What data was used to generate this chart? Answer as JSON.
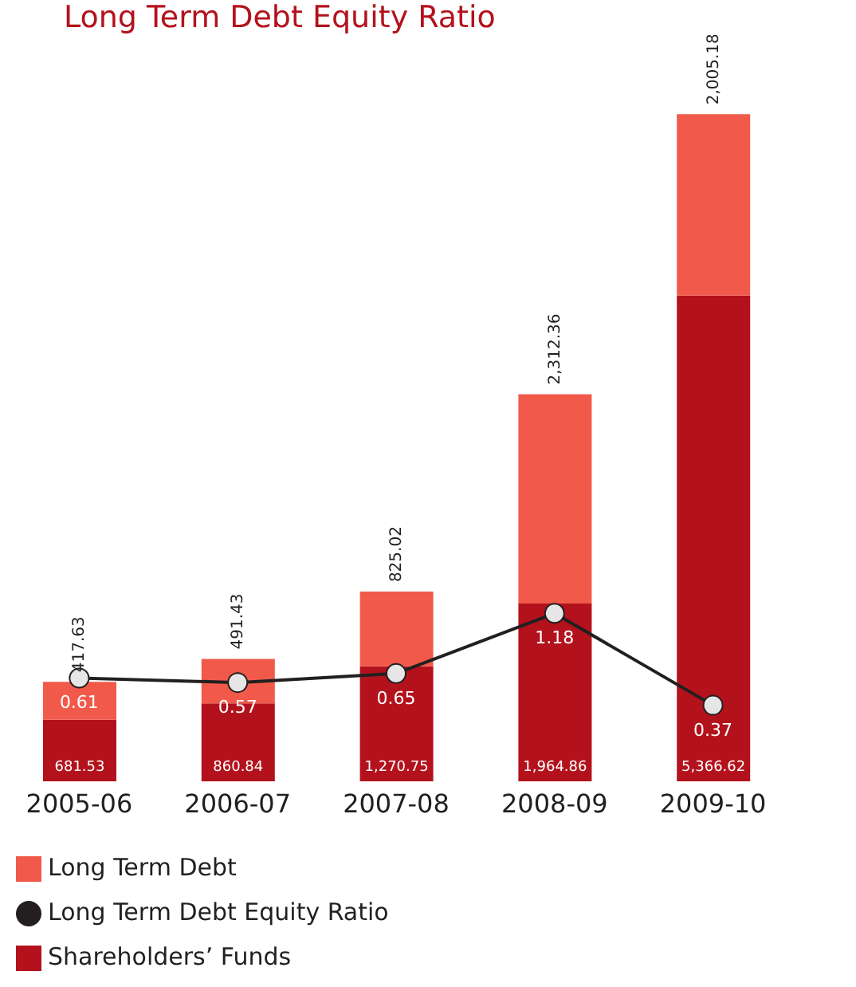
{
  "chart_data": {
    "type": "bar",
    "title": "Long Term Debt Equity Ratio",
    "categories": [
      "2005-06",
      "2006-07",
      "2007-08",
      "2008-09",
      "2009-10"
    ],
    "stacked": true,
    "data_labels": true,
    "legend": "bottom left",
    "tick_labels": "x",
    "ylim": [
      0,
      7400
    ],
    "y2lim": [
      -0.3,
      5.6
    ],
    "series": [
      {
        "name": "Shareholders’ Funds",
        "color": "#b3121c",
        "values": [
          681.53,
          860.84,
          1270.75,
          1964.86,
          5366.62
        ],
        "value_labels": [
          "681.53",
          "860.84",
          "1,270.75",
          "1,964.86",
          "5,366.62"
        ]
      },
      {
        "name": "Long Term Debt",
        "color": "#f15a4a",
        "values": [
          417.63,
          491.43,
          825.02,
          2312.36,
          2005.18
        ],
        "value_labels": [
          "417.63",
          "491.43",
          "825.02",
          "2,312.36",
          "2,005.18"
        ]
      },
      {
        "name": "Long Term Debt Equity Ratio",
        "type": "line",
        "axis": "y2",
        "color": "#231f20",
        "marker": "circle",
        "values": [
          0.61,
          0.57,
          0.65,
          1.18,
          0.37
        ]
      }
    ]
  }
}
